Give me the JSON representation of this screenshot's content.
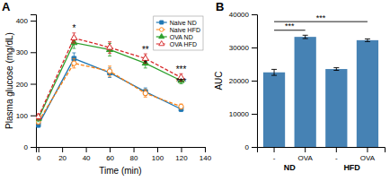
{
  "chart_data": [
    {
      "type": "line",
      "title": "A",
      "x_label": "Time (min)",
      "y_label": "Plasma glucose (mg/dL)",
      "x": [
        0,
        30,
        60,
        90,
        120
      ],
      "xlim": [
        -2,
        140
      ],
      "ylim": [
        0,
        420
      ],
      "xticks": [
        0,
        20,
        40,
        60,
        80,
        100,
        120,
        140
      ],
      "yticks": [
        0,
        100,
        200,
        300,
        400
      ],
      "legend": "upper right",
      "series": [
        {
          "name": "Naive ND",
          "values": [
            70,
            280,
            235,
            175,
            120
          ],
          "errors": [
            8,
            18,
            15,
            12,
            8
          ],
          "marker": "square",
          "line_style": "solid"
        },
        {
          "name": "Naive HFD",
          "values": [
            80,
            265,
            240,
            170,
            128
          ],
          "errors": [
            8,
            15,
            16,
            12,
            8
          ],
          "marker": "circle-open",
          "line_style": "dashed"
        },
        {
          "name": "OVA ND",
          "values": [
            90,
            330,
            308,
            265,
            210
          ],
          "errors": [
            10,
            18,
            20,
            15,
            10
          ],
          "marker": "triangle",
          "line_style": "solid"
        },
        {
          "name": "OVA HFD",
          "values": [
            95,
            345,
            315,
            280,
            220
          ],
          "errors": [
            10,
            16,
            18,
            15,
            12
          ],
          "marker": "triangle-open",
          "line_style": "dashed"
        }
      ],
      "annotations": [
        {
          "text": "*",
          "x": 30,
          "y": 366
        },
        {
          "text": "**",
          "x": 90,
          "y": 298
        },
        {
          "text": "*",
          "x": 90,
          "y": 253
        },
        {
          "text": "***",
          "x": 120,
          "y": 235
        },
        {
          "text": "***",
          "x": 120,
          "y": 195
        }
      ]
    },
    {
      "type": "bar",
      "title": "B",
      "y_label": "AUC",
      "categories": [
        "-",
        "OVA",
        "-",
        "OVA"
      ],
      "group_labels": [
        "ND",
        "HFD"
      ],
      "values": [
        22500,
        33200,
        23500,
        32200
      ],
      "errors": [
        900,
        500,
        400,
        400
      ],
      "ylim": [
        0,
        40000
      ],
      "yticks": [
        0,
        10000,
        20000,
        30000,
        40000
      ],
      "significance": [
        {
          "from": 0,
          "to": 1,
          "y": 35200,
          "text": "***"
        },
        {
          "from": 0,
          "to": 3,
          "y": 37800,
          "text": "***"
        }
      ]
    }
  ]
}
